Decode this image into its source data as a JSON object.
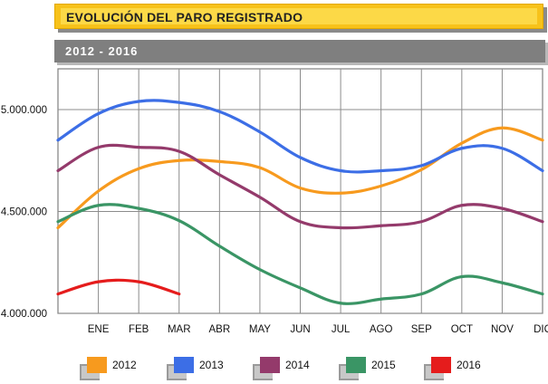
{
  "header": {
    "title": "EVOLUCIÓN DEL PARO REGISTRADO",
    "subtitle": "2012 - 2016"
  },
  "chart_data": {
    "type": "line",
    "title": "EVOLUCIÓN DEL PARO REGISTRADO",
    "subtitle": "2012 - 2016",
    "xlabel": "",
    "ylabel": "",
    "categories": [
      "",
      "ENE",
      "FEB",
      "MAR",
      "ABR",
      "MAY",
      "JUN",
      "JUL",
      "AGO",
      "SEP",
      "OCT",
      "NOV",
      "DIC"
    ],
    "ylim": [
      4000000,
      5200000
    ],
    "yticks": [
      4000000,
      4500000,
      5000000
    ],
    "ytick_labels": [
      "4.000.000",
      "4.500.000",
      "5.000.000"
    ],
    "grid": true,
    "legend_position": "bottom",
    "series": [
      {
        "name": "2012",
        "color": "#f79a1e",
        "values": [
          4420000,
          4600000,
          4710000,
          4750000,
          4745000,
          4715000,
          4615000,
          4590000,
          4625000,
          4705000,
          4835000,
          4910000,
          4850000
        ]
      },
      {
        "name": "2013",
        "color": "#3c6ee6",
        "values": [
          4850000,
          4980000,
          5040000,
          5035000,
          4990000,
          4890000,
          4765000,
          4700000,
          4700000,
          4725000,
          4810000,
          4810000,
          4700000
        ]
      },
      {
        "name": "2014",
        "color": "#943a6b",
        "values": [
          4700000,
          4815000,
          4815000,
          4795000,
          4680000,
          4570000,
          4450000,
          4420000,
          4430000,
          4450000,
          4530000,
          4515000,
          4450000
        ]
      },
      {
        "name": "2015",
        "color": "#3a9565",
        "values": [
          4450000,
          4530000,
          4515000,
          4455000,
          4330000,
          4215000,
          4125000,
          4050000,
          4070000,
          4095000,
          4180000,
          4150000,
          4095000
        ]
      },
      {
        "name": "2016",
        "color": "#e51c1c",
        "values": [
          4095000,
          4155000,
          4155000,
          4095000,
          null,
          null,
          null,
          null,
          null,
          null,
          null,
          null,
          null
        ]
      }
    ]
  }
}
